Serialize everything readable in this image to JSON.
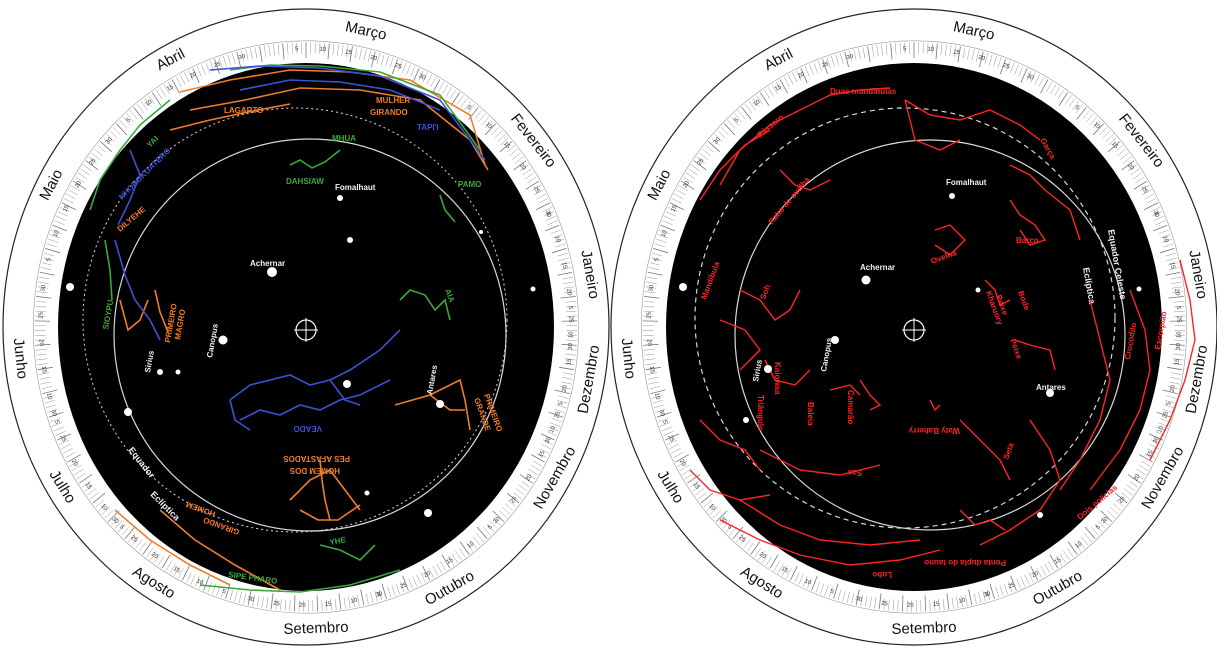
{
  "colors": {
    "sky": "#000000",
    "rim": "#ffffff",
    "tick": "#777777",
    "star": "#ffffff",
    "label_white": "#f2f2f2",
    "orange": "#f07d2a",
    "green": "#3aa83a",
    "blue": "#3b52d6",
    "red": "#ff2424"
  },
  "months": [
    "Janeiro",
    "Fevereiro",
    "Março",
    "Abril",
    "Maio",
    "Junho",
    "Julho",
    "Agosto",
    "Setembro",
    "Outubro",
    "Novembro",
    "Dezembro"
  ],
  "day_marks": [
    "5",
    "10",
    "15",
    "20",
    "25",
    "30"
  ],
  "left_chart": {
    "center_symbol": "crosshair-icon",
    "star_labels": [
      "Fomalhaut",
      "Achernar",
      "Canopus",
      "Sirius",
      "Antares"
    ],
    "circle_labels": {
      "equator": "Equador",
      "ecliptic": "Eclíptica"
    },
    "constellations": [
      {
        "label": "LAGARTO",
        "color": "#f07d2a"
      },
      {
        "label": "MULHER",
        "color": "#f07d2a"
      },
      {
        "label": "GIRANDO",
        "color": "#f07d2a"
      },
      {
        "label": "TAPI'I",
        "color": "#3b52d6"
      },
      {
        "label": "MHUA",
        "color": "#3aa83a"
      },
      {
        "label": "DAHSIAW",
        "color": "#3aa83a"
      },
      {
        "label": "PAMO",
        "color": "#3aa83a"
      },
      {
        "label": "YAI",
        "color": "#3aa83a"
      },
      {
        "label": "NHOROKOATERO",
        "color": "#3b52d6"
      },
      {
        "label": "DILYEHE",
        "color": "#f07d2a"
      },
      {
        "label": "SIOYPU",
        "color": "#3aa83a"
      },
      {
        "label": "PRIMEIRO",
        "color": "#f07d2a"
      },
      {
        "label": "MAGRO",
        "color": "#f07d2a"
      },
      {
        "label": "AIA",
        "color": "#3aa83a"
      },
      {
        "label": "VEADO",
        "color": "#3b52d6"
      },
      {
        "label": "HOMEM DOS",
        "color": "#f07d2a"
      },
      {
        "label": "PES AFASTADOS",
        "color": "#f07d2a"
      },
      {
        "label": "PRIMEIRO",
        "color": "#f07d2a"
      },
      {
        "label": "GRANDE",
        "color": "#f07d2a"
      },
      {
        "label": "HOMEM",
        "color": "#f07d2a"
      },
      {
        "label": "GIRANDO",
        "color": "#f07d2a"
      },
      {
        "label": "YHE",
        "color": "#3aa83a"
      },
      {
        "label": "SIPE PHARO",
        "color": "#3aa83a"
      }
    ]
  },
  "right_chart": {
    "center_symbol": "crosshair-icon",
    "star_labels": [
      "Fomalhaut",
      "Achernar",
      "Canopus",
      "Sirius",
      "Antares"
    ],
    "circle_labels": {
      "equator": "Equador Celeste",
      "ecliptic": "Eclíptica"
    },
    "constellations": [
      {
        "label": "Duas mandíbulas",
        "color": "#ff2424"
      },
      {
        "label": "Pássaro",
        "color": "#ff2424"
      },
      {
        "label": "Garça",
        "color": "#ff2424"
      },
      {
        "label": "Rabo de ovelha",
        "color": "#ff2424"
      },
      {
        "label": "Ovelha",
        "color": "#ff2424"
      },
      {
        "label": "Barco",
        "color": "#ff2424"
      },
      {
        "label": "Mandíbula",
        "color": "#ff2424"
      },
      {
        "label": "Soh",
        "color": "#ff2424"
      },
      {
        "label": "Peixe",
        "color": "#ff2424"
      },
      {
        "label": "Kharuory",
        "color": "#ff2424"
      },
      {
        "label": "Bode",
        "color": "#ff2424"
      },
      {
        "label": "Peixe",
        "color": "#ff2424"
      },
      {
        "label": "Kaiowaa",
        "color": "#ff2424"
      },
      {
        "label": "Triângulo",
        "color": "#ff2424"
      },
      {
        "label": "Baleia",
        "color": "#ff2424"
      },
      {
        "label": "Camarão",
        "color": "#ff2424"
      },
      {
        "label": "Crocodilo",
        "color": "#ff2424"
      },
      {
        "label": "Escorpião",
        "color": "#ff2424"
      },
      {
        "label": "Waty Baherry",
        "color": "#ff2424"
      },
      {
        "label": "Sas",
        "color": "#ff2424"
      },
      {
        "label": "Seta",
        "color": "#ff2424"
      },
      {
        "label": "Dois polícias",
        "color": "#ff2424"
      },
      {
        "label": "Ponta dupla do tauno",
        "color": "#ff2424"
      },
      {
        "label": "Lobo",
        "color": "#ff2424"
      }
    ]
  }
}
